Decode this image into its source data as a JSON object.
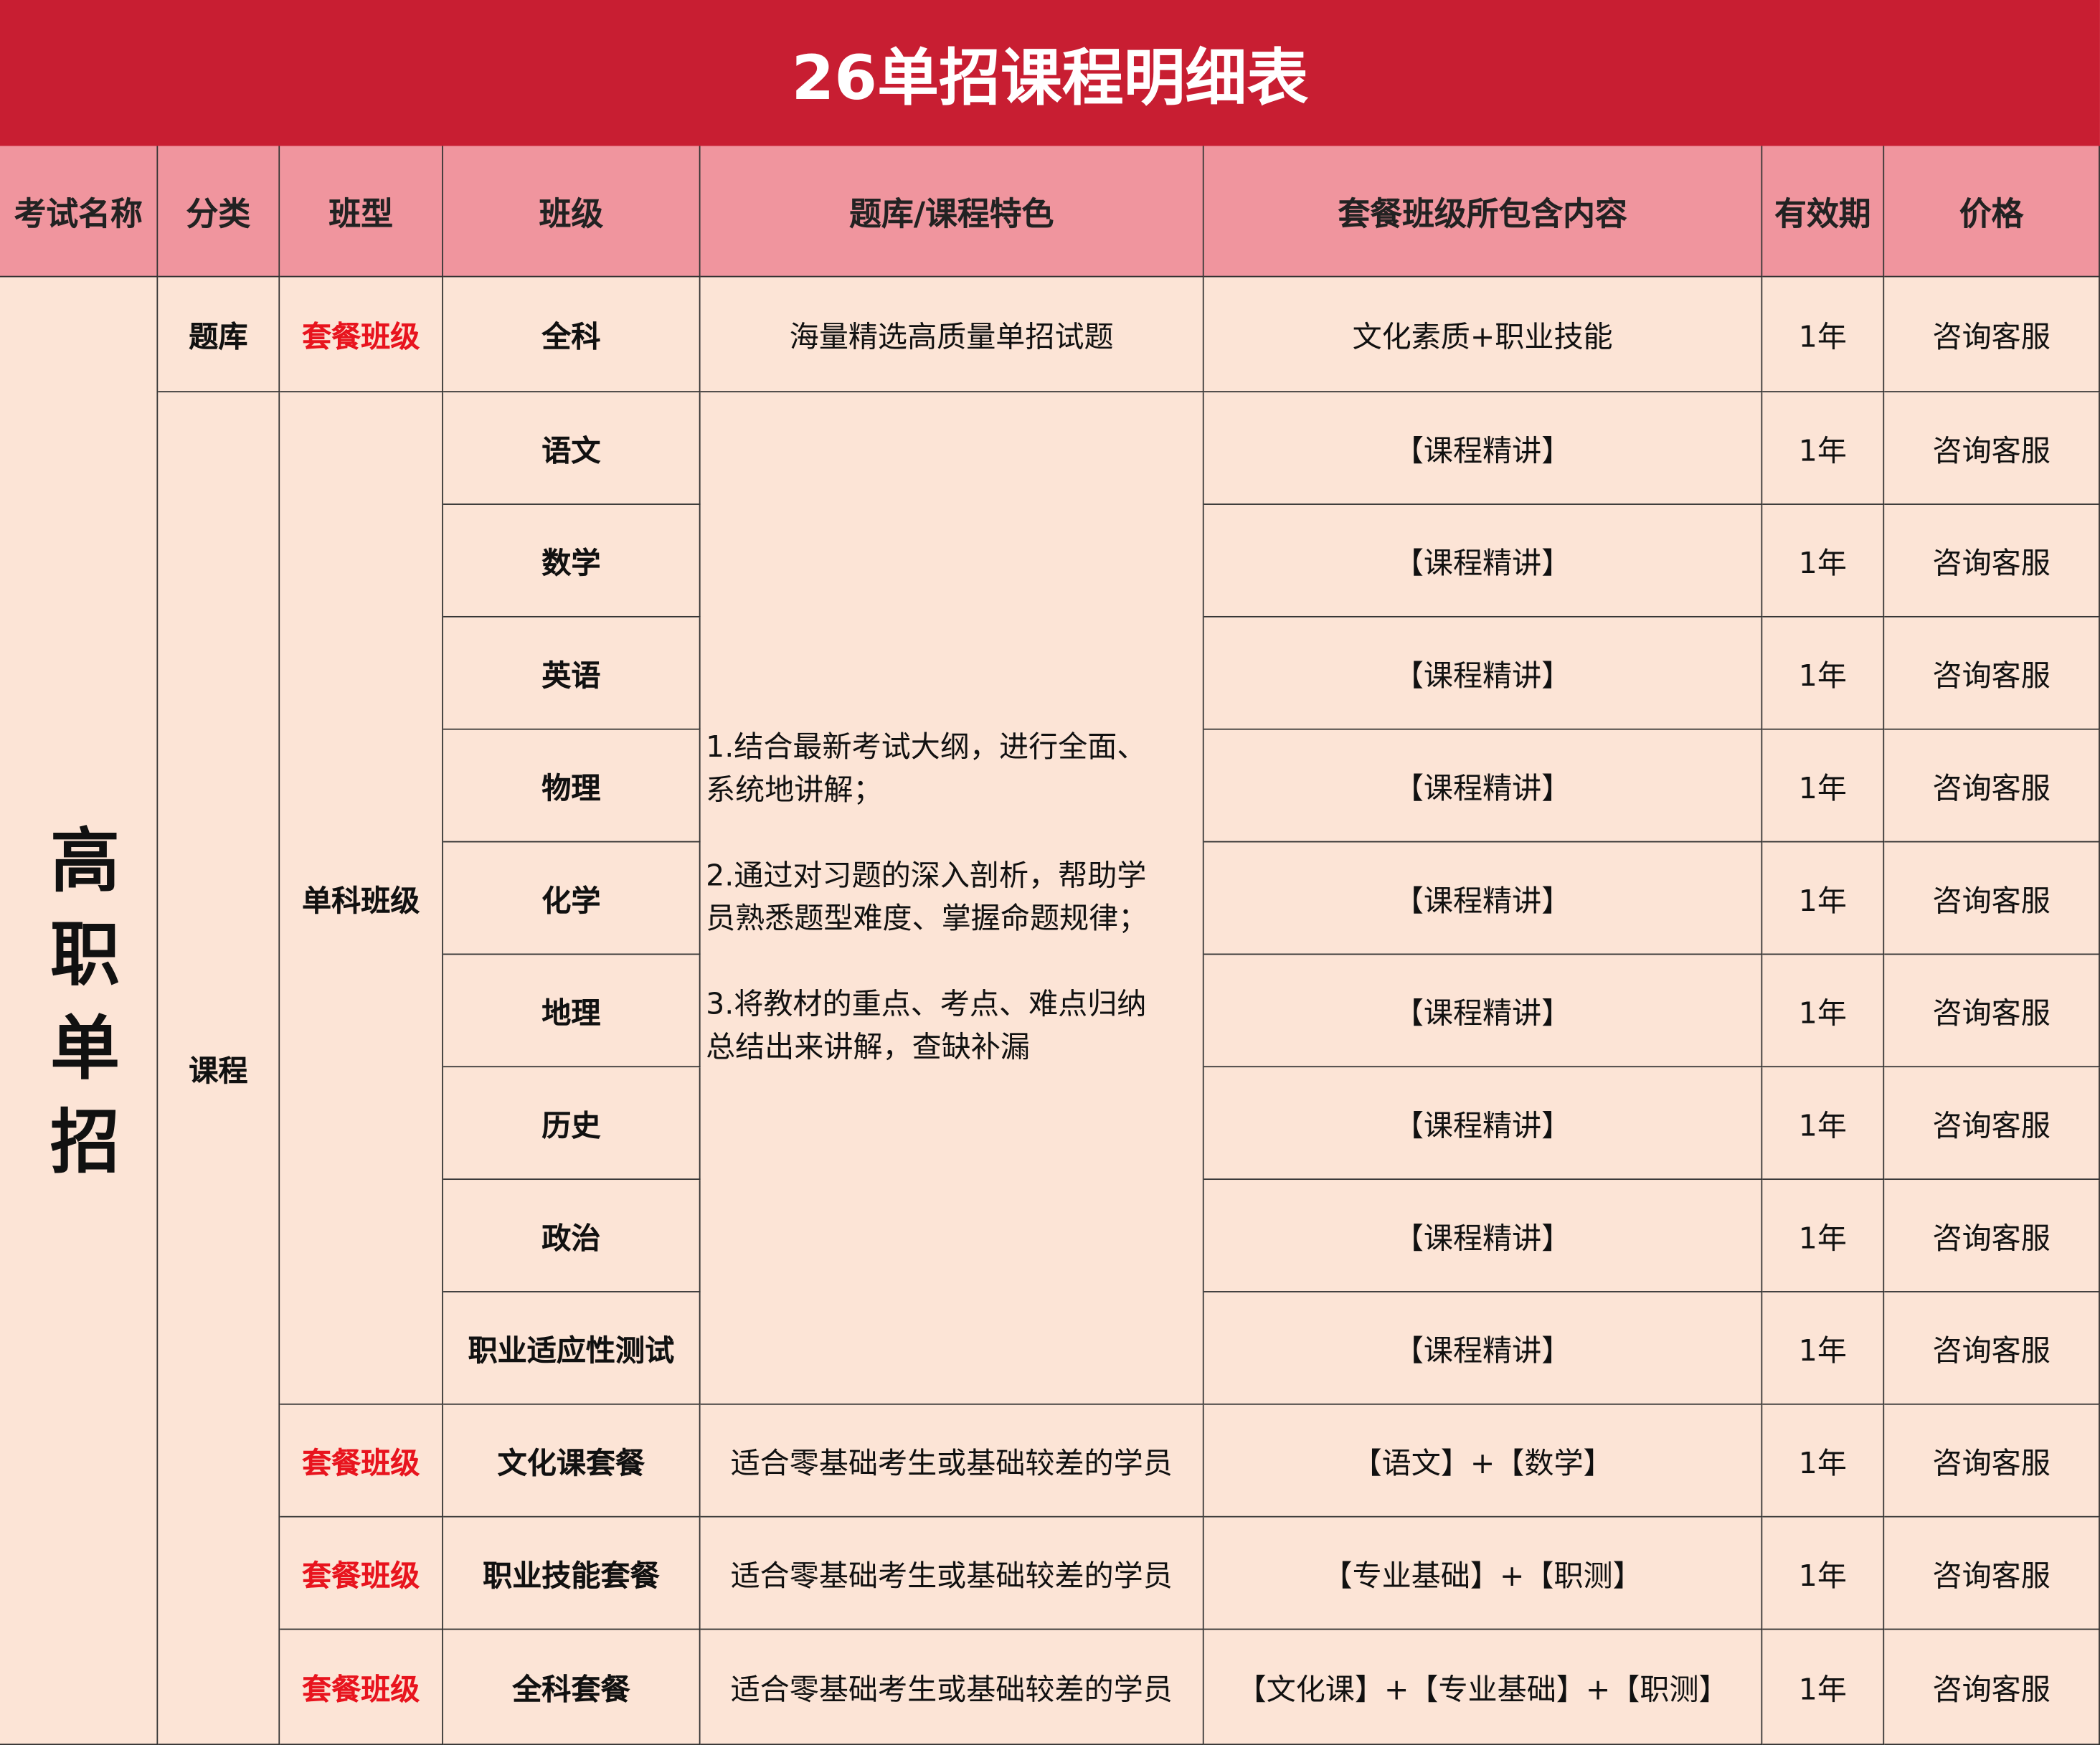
{
  "title": "26单招课程明细表",
  "headers": [
    "考试名称",
    "分类",
    "班型",
    "班级",
    "题库/课程特色",
    "套餐班级所包含内容",
    "有效期",
    "价格"
  ],
  "exam_name": "高职单招",
  "quiz_bank": {
    "category": "题库",
    "type": "套餐班级",
    "class": "全科",
    "feature": "海量精选高质量单招试题",
    "content": "文化素质+职业技能",
    "validity": "1年",
    "price": "咨询客服"
  },
  "courses": {
    "category": "课程",
    "single_type": "单科班级",
    "single_feature": "1.结合最新考试大纲，进行全面、\n系统地讲解；\n\n2.通过对习题的深入剖析，帮助学\n员熟悉题型难度、掌握命题规律；\n\n3.将教材的重点、考点、难点归纳\n总结出来讲解，查缺补漏",
    "subjects": [
      {
        "class": "语文",
        "content": "【课程精讲】",
        "validity": "1年",
        "price": "咨询客服"
      },
      {
        "class": "数学",
        "content": "【课程精讲】",
        "validity": "1年",
        "price": "咨询客服"
      },
      {
        "class": "英语",
        "content": "【课程精讲】",
        "validity": "1年",
        "price": "咨询客服"
      },
      {
        "class": "物理",
        "content": "【课程精讲】",
        "validity": "1年",
        "price": "咨询客服"
      },
      {
        "class": "化学",
        "content": "【课程精讲】",
        "validity": "1年",
        "price": "咨询客服"
      },
      {
        "class": "地理",
        "content": "【课程精讲】",
        "validity": "1年",
        "price": "咨询客服"
      },
      {
        "class": "历史",
        "content": "【课程精讲】",
        "validity": "1年",
        "price": "咨询客服"
      },
      {
        "class": "政治",
        "content": "【课程精讲】",
        "validity": "1年",
        "price": "咨询客服"
      },
      {
        "class": "职业适应性测试",
        "content": "【课程精讲】",
        "validity": "1年",
        "price": "咨询客服"
      }
    ],
    "packages": [
      {
        "type": "套餐班级",
        "class": "文化课套餐",
        "feature": "适合零基础考生或基础较差的学员",
        "content": "【语文】+【数学】",
        "validity": "1年",
        "price": "咨询客服"
      },
      {
        "type": "套餐班级",
        "class": "职业技能套餐",
        "feature": "适合零基础考生或基础较差的学员",
        "content": "【专业基础】+【职测】",
        "validity": "1年",
        "price": "咨询客服"
      },
      {
        "type": "套餐班级",
        "class": "全科套餐",
        "feature": "适合零基础考生或基础较差的学员",
        "content": "【文化课】+【专业基础】+【职测】",
        "validity": "1年",
        "price": "咨询客服"
      }
    ]
  },
  "colors": {
    "title_bg": "#C81E32",
    "header_bg": "#F0959E",
    "body_bg": "#FCE4D6",
    "highlight_text": "#E8141E"
  }
}
